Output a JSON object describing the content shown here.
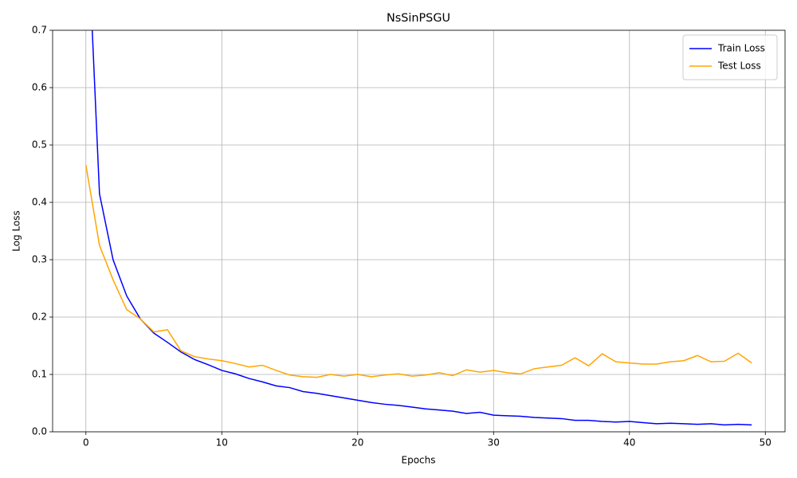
{
  "chart_data": {
    "type": "line",
    "title": "NsSinPSGU",
    "xlabel": "Epochs",
    "ylabel": "Log Loss",
    "x": [
      0,
      1,
      2,
      3,
      4,
      5,
      6,
      7,
      8,
      9,
      10,
      11,
      12,
      13,
      14,
      15,
      16,
      17,
      18,
      19,
      20,
      21,
      22,
      23,
      24,
      25,
      26,
      27,
      28,
      29,
      30,
      31,
      32,
      33,
      34,
      35,
      36,
      37,
      38,
      39,
      40,
      41,
      42,
      43,
      44,
      45,
      46,
      47,
      48,
      49
    ],
    "series": [
      {
        "name": "Train Loss",
        "color": "#0000ff",
        "values": [
          0.95,
          0.415,
          0.3,
          0.237,
          0.197,
          0.172,
          0.156,
          0.139,
          0.126,
          0.117,
          0.107,
          0.101,
          0.093,
          0.087,
          0.08,
          0.077,
          0.07,
          0.067,
          0.063,
          0.059,
          0.055,
          0.051,
          0.048,
          0.046,
          0.043,
          0.04,
          0.038,
          0.036,
          0.032,
          0.034,
          0.029,
          0.028,
          0.027,
          0.025,
          0.024,
          0.023,
          0.02,
          0.02,
          0.018,
          0.017,
          0.018,
          0.016,
          0.014,
          0.015,
          0.014,
          0.013,
          0.014,
          0.012,
          0.013,
          0.012
        ]
      },
      {
        "name": "Test Loss",
        "color": "#ffa500",
        "values": [
          0.465,
          0.325,
          0.265,
          0.213,
          0.197,
          0.174,
          0.178,
          0.141,
          0.131,
          0.127,
          0.124,
          0.119,
          0.113,
          0.116,
          0.107,
          0.099,
          0.096,
          0.095,
          0.1,
          0.097,
          0.1,
          0.096,
          0.099,
          0.101,
          0.097,
          0.099,
          0.103,
          0.098,
          0.108,
          0.104,
          0.107,
          0.103,
          0.101,
          0.11,
          0.113,
          0.116,
          0.129,
          0.115,
          0.136,
          0.122,
          0.12,
          0.118,
          0.118,
          0.122,
          0.124,
          0.133,
          0.122,
          0.123,
          0.137,
          0.12
        ]
      }
    ],
    "xlim": [
      -2.45,
      51.45
    ],
    "xticks": [
      0,
      10,
      20,
      30,
      40,
      50
    ],
    "ylim": [
      0,
      0.7
    ],
    "yticks": [
      {
        "value": 0,
        "label": "0.0"
      },
      0.1,
      0.2,
      0.3,
      0.4,
      0.5,
      0.6,
      0.7
    ],
    "grid": true,
    "legend": "upper right"
  }
}
